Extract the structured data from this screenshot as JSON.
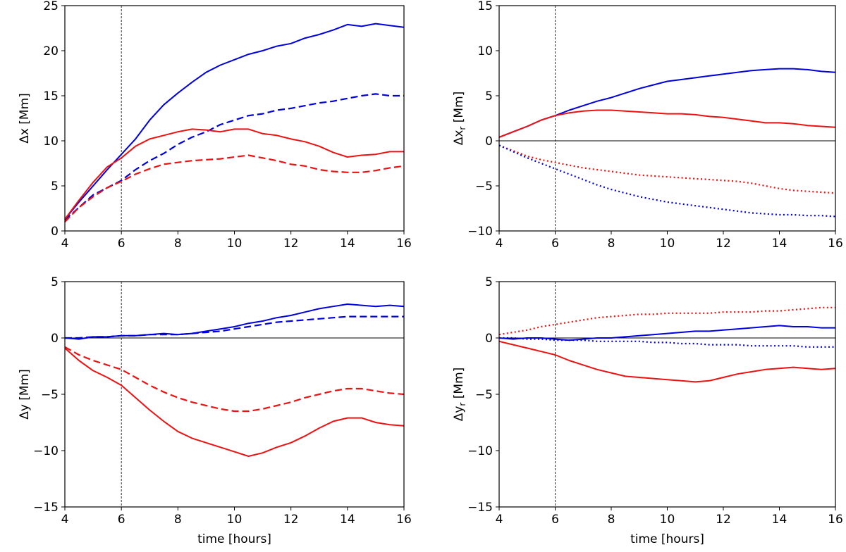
{
  "chart_data": [
    {
      "id": "top-left",
      "type": "line",
      "title": "",
      "xlabel": "",
      "ylabel": "Δx   [Mm]",
      "xlim": [
        4,
        16
      ],
      "ylim": [
        0,
        25
      ],
      "xticks": [
        4,
        6,
        8,
        10,
        12,
        14,
        16
      ],
      "yticks": [
        0,
        5,
        10,
        15,
        20,
        25
      ],
      "zero_line": false,
      "vline_x": 6,
      "series": [
        {
          "name": "blue-solid",
          "color": "#0000dd",
          "style": "solid",
          "x": [
            4,
            4.5,
            5,
            5.5,
            6,
            6.5,
            7,
            7.5,
            8,
            8.5,
            9,
            9.5,
            10,
            10.5,
            11,
            11.5,
            12,
            12.5,
            13,
            13.5,
            14,
            14.5,
            15,
            15.5,
            16
          ],
          "y": [
            1.3,
            3.2,
            5.0,
            6.8,
            8.5,
            10.2,
            12.3,
            14.0,
            15.3,
            16.5,
            17.6,
            18.4,
            19.0,
            19.6,
            20.0,
            20.5,
            20.8,
            21.4,
            21.8,
            22.3,
            22.9,
            22.7,
            23.0,
            22.8,
            22.6
          ]
        },
        {
          "name": "blue-dashed",
          "color": "#0000dd",
          "style": "dashed",
          "x": [
            4,
            4.5,
            5,
            5.5,
            6,
            6.5,
            7,
            7.5,
            8,
            8.5,
            9,
            9.5,
            10,
            10.5,
            11,
            11.5,
            12,
            12.5,
            13,
            13.5,
            14,
            14.5,
            15,
            15.5,
            16
          ],
          "y": [
            1.2,
            2.6,
            4.0,
            4.8,
            5.6,
            6.8,
            7.8,
            8.6,
            9.6,
            10.4,
            11.0,
            11.8,
            12.3,
            12.8,
            13.0,
            13.4,
            13.6,
            13.9,
            14.2,
            14.4,
            14.7,
            15.0,
            15.2,
            15.0,
            15.0
          ]
        },
        {
          "name": "red-solid",
          "color": "#ee1111",
          "style": "solid",
          "x": [
            4,
            4.5,
            5,
            5.5,
            6,
            6.5,
            7,
            7.5,
            8,
            8.5,
            9,
            9.5,
            10,
            10.5,
            11,
            11.5,
            12,
            12.5,
            13,
            13.5,
            14,
            14.5,
            15,
            15.5,
            16
          ],
          "y": [
            1.3,
            3.4,
            5.4,
            7.1,
            8.1,
            9.4,
            10.2,
            10.6,
            11.0,
            11.3,
            11.2,
            11.0,
            11.3,
            11.3,
            10.8,
            10.6,
            10.2,
            9.9,
            9.4,
            8.7,
            8.2,
            8.4,
            8.5,
            8.8,
            8.8
          ]
        },
        {
          "name": "red-dashed",
          "color": "#ee1111",
          "style": "dashed",
          "x": [
            4,
            4.5,
            5,
            5.5,
            6,
            6.5,
            7,
            7.5,
            8,
            8.5,
            9,
            9.5,
            10,
            10.5,
            11,
            11.5,
            12,
            12.5,
            13,
            13.5,
            14,
            14.5,
            15,
            15.5,
            16
          ],
          "y": [
            1.0,
            2.6,
            3.8,
            4.8,
            5.5,
            6.3,
            6.9,
            7.4,
            7.6,
            7.8,
            7.9,
            8.0,
            8.2,
            8.4,
            8.1,
            7.8,
            7.4,
            7.2,
            6.8,
            6.6,
            6.5,
            6.5,
            6.7,
            7.0,
            7.2
          ]
        }
      ]
    },
    {
      "id": "top-right",
      "type": "line",
      "title": "",
      "xlabel": "",
      "ylabel": "Δx",
      "ylabel_sub": "r",
      "ylabel_unit": " [Mm]",
      "xlim": [
        4,
        16
      ],
      "ylim": [
        -10,
        15
      ],
      "xticks": [
        4,
        6,
        8,
        10,
        12,
        14,
        16
      ],
      "yticks": [
        -10,
        -5,
        0,
        5,
        10,
        15
      ],
      "zero_line": true,
      "vline_x": 6,
      "series": [
        {
          "name": "blue-solid",
          "color": "#0000dd",
          "style": "solid",
          "x": [
            4,
            4.5,
            5,
            5.5,
            6,
            6.5,
            7,
            7.5,
            8,
            8.5,
            9,
            9.5,
            10,
            10.5,
            11,
            11.5,
            12,
            12.5,
            13,
            13.5,
            14,
            14.5,
            15,
            15.5,
            16
          ],
          "y": [
            0.4,
            1.0,
            1.6,
            2.3,
            2.8,
            3.4,
            3.9,
            4.4,
            4.8,
            5.3,
            5.8,
            6.2,
            6.6,
            6.8,
            7.0,
            7.2,
            7.4,
            7.6,
            7.8,
            7.9,
            8.0,
            8.0,
            7.9,
            7.7,
            7.6
          ]
        },
        {
          "name": "red-solid",
          "color": "#ee1111",
          "style": "solid",
          "x": [
            4,
            4.5,
            5,
            5.5,
            6,
            6.5,
            7,
            7.5,
            8,
            8.5,
            9,
            9.5,
            10,
            10.5,
            11,
            11.5,
            12,
            12.5,
            13,
            13.5,
            14,
            14.5,
            15,
            15.5,
            16
          ],
          "y": [
            0.4,
            1.0,
            1.6,
            2.3,
            2.8,
            3.1,
            3.3,
            3.4,
            3.4,
            3.3,
            3.2,
            3.1,
            3.0,
            3.0,
            2.9,
            2.7,
            2.6,
            2.4,
            2.2,
            2.0,
            2.0,
            1.9,
            1.7,
            1.6,
            1.5
          ]
        },
        {
          "name": "red-dotted",
          "color": "#ee1111",
          "style": "dotted",
          "x": [
            4,
            4.5,
            5,
            5.5,
            6,
            6.5,
            7,
            7.5,
            8,
            8.5,
            9,
            9.5,
            10,
            10.5,
            11,
            11.5,
            12,
            12.5,
            13,
            13.5,
            14,
            14.5,
            15,
            15.5,
            16
          ],
          "y": [
            -0.5,
            -1.1,
            -1.7,
            -2.1,
            -2.4,
            -2.7,
            -3.0,
            -3.2,
            -3.4,
            -3.6,
            -3.8,
            -3.9,
            -4.0,
            -4.1,
            -4.2,
            -4.3,
            -4.4,
            -4.5,
            -4.7,
            -5.0,
            -5.3,
            -5.5,
            -5.6,
            -5.7,
            -5.8
          ]
        },
        {
          "name": "blue-dotted",
          "color": "#0000dd",
          "style": "dotted",
          "x": [
            4,
            4.5,
            5,
            5.5,
            6,
            6.5,
            7,
            7.5,
            8,
            8.5,
            9,
            9.5,
            10,
            10.5,
            11,
            11.5,
            12,
            12.5,
            13,
            13.5,
            14,
            14.5,
            15,
            15.5,
            16
          ],
          "y": [
            -0.5,
            -1.2,
            -1.9,
            -2.5,
            -3.1,
            -3.7,
            -4.3,
            -4.9,
            -5.4,
            -5.8,
            -6.2,
            -6.5,
            -6.8,
            -7.0,
            -7.2,
            -7.4,
            -7.6,
            -7.8,
            -8.0,
            -8.1,
            -8.2,
            -8.2,
            -8.3,
            -8.3,
            -8.4
          ]
        }
      ]
    },
    {
      "id": "bottom-left",
      "type": "line",
      "title": "",
      "xlabel": "time [hours]",
      "ylabel": "Δy   [Mm]",
      "xlim": [
        4,
        16
      ],
      "ylim": [
        -15,
        5
      ],
      "xticks": [
        4,
        6,
        8,
        10,
        12,
        14,
        16
      ],
      "yticks": [
        -15,
        -10,
        -5,
        0,
        5
      ],
      "zero_line": true,
      "vline_x": 6,
      "series": [
        {
          "name": "blue-solid",
          "color": "#0000dd",
          "style": "solid",
          "x": [
            4,
            4.5,
            5,
            5.5,
            6,
            6.5,
            7,
            7.5,
            8,
            8.5,
            9,
            9.5,
            10,
            10.5,
            11,
            11.5,
            12,
            12.5,
            13,
            13.5,
            14,
            14.5,
            15,
            15.5,
            16
          ],
          "y": [
            0.0,
            -0.1,
            0.1,
            0.1,
            0.2,
            0.2,
            0.3,
            0.4,
            0.3,
            0.4,
            0.6,
            0.8,
            1.0,
            1.3,
            1.5,
            1.8,
            2.0,
            2.3,
            2.6,
            2.8,
            3.0,
            2.9,
            2.8,
            2.9,
            2.8
          ]
        },
        {
          "name": "blue-dashed",
          "color": "#0000dd",
          "style": "dashed",
          "x": [
            4,
            4.5,
            5,
            5.5,
            6,
            6.5,
            7,
            7.5,
            8,
            8.5,
            9,
            9.5,
            10,
            10.5,
            11,
            11.5,
            12,
            12.5,
            13,
            13.5,
            14,
            14.5,
            15,
            15.5,
            16
          ],
          "y": [
            0.0,
            0.0,
            0.1,
            0.1,
            0.2,
            0.2,
            0.3,
            0.3,
            0.3,
            0.4,
            0.5,
            0.6,
            0.8,
            1.0,
            1.2,
            1.4,
            1.5,
            1.6,
            1.7,
            1.8,
            1.9,
            1.9,
            1.9,
            1.9,
            1.9
          ]
        },
        {
          "name": "red-dashed",
          "color": "#ee1111",
          "style": "dashed",
          "x": [
            4,
            4.5,
            5,
            5.5,
            6,
            6.5,
            7,
            7.5,
            8,
            8.5,
            9,
            9.5,
            10,
            10.5,
            11,
            11.5,
            12,
            12.5,
            13,
            13.5,
            14,
            14.5,
            15,
            15.5,
            16
          ],
          "y": [
            -0.8,
            -1.5,
            -2.0,
            -2.4,
            -2.8,
            -3.5,
            -4.2,
            -4.8,
            -5.3,
            -5.7,
            -6.0,
            -6.3,
            -6.5,
            -6.5,
            -6.3,
            -6.0,
            -5.7,
            -5.3,
            -5.0,
            -4.7,
            -4.5,
            -4.5,
            -4.7,
            -4.9,
            -5.0
          ]
        },
        {
          "name": "red-solid",
          "color": "#ee1111",
          "style": "solid",
          "x": [
            4,
            4.5,
            5,
            5.5,
            6,
            6.5,
            7,
            7.5,
            8,
            8.5,
            9,
            9.5,
            10,
            10.5,
            11,
            11.5,
            12,
            12.5,
            13,
            13.5,
            14,
            14.5,
            15,
            15.5,
            16
          ],
          "y": [
            -0.9,
            -2.0,
            -2.9,
            -3.5,
            -4.2,
            -5.3,
            -6.4,
            -7.4,
            -8.3,
            -8.9,
            -9.3,
            -9.7,
            -10.1,
            -10.5,
            -10.2,
            -9.7,
            -9.3,
            -8.7,
            -8.0,
            -7.4,
            -7.1,
            -7.1,
            -7.5,
            -7.7,
            -7.8
          ]
        }
      ]
    },
    {
      "id": "bottom-right",
      "type": "line",
      "title": "",
      "xlabel": "time [hours]",
      "ylabel": "Δy",
      "ylabel_sub": "r",
      "ylabel_unit": " [Mm]",
      "xlim": [
        4,
        16
      ],
      "ylim": [
        -15,
        5
      ],
      "xticks": [
        4,
        6,
        8,
        10,
        12,
        14,
        16
      ],
      "yticks": [
        -15,
        -10,
        -5,
        0,
        5
      ],
      "zero_line": true,
      "vline_x": 6,
      "series": [
        {
          "name": "red-dotted",
          "color": "#ee1111",
          "style": "dotted",
          "x": [
            4,
            4.5,
            5,
            5.5,
            6,
            6.5,
            7,
            7.5,
            8,
            8.5,
            9,
            9.5,
            10,
            10.5,
            11,
            11.5,
            12,
            12.5,
            13,
            13.5,
            14,
            14.5,
            15,
            15.5,
            16
          ],
          "y": [
            0.3,
            0.5,
            0.7,
            1.0,
            1.2,
            1.4,
            1.6,
            1.8,
            1.9,
            2.0,
            2.1,
            2.1,
            2.2,
            2.2,
            2.2,
            2.2,
            2.3,
            2.3,
            2.3,
            2.4,
            2.4,
            2.5,
            2.6,
            2.7,
            2.7
          ]
        },
        {
          "name": "blue-solid",
          "color": "#0000dd",
          "style": "solid",
          "x": [
            4,
            4.5,
            5,
            5.5,
            6,
            6.5,
            7,
            7.5,
            8,
            8.5,
            9,
            9.5,
            10,
            10.5,
            11,
            11.5,
            12,
            12.5,
            13,
            13.5,
            14,
            14.5,
            15,
            15.5,
            16
          ],
          "y": [
            0.0,
            -0.1,
            0.0,
            0.0,
            -0.1,
            -0.2,
            -0.1,
            0.0,
            0.0,
            0.1,
            0.2,
            0.3,
            0.4,
            0.5,
            0.6,
            0.6,
            0.7,
            0.8,
            0.9,
            1.0,
            1.1,
            1.0,
            1.0,
            0.9,
            0.9
          ]
        },
        {
          "name": "blue-dotted",
          "color": "#0000dd",
          "style": "dotted",
          "x": [
            4,
            4.5,
            5,
            5.5,
            6,
            6.5,
            7,
            7.5,
            8,
            8.5,
            9,
            9.5,
            10,
            10.5,
            11,
            11.5,
            12,
            12.5,
            13,
            13.5,
            14,
            14.5,
            15,
            15.5,
            16
          ],
          "y": [
            0.0,
            0.0,
            -0.1,
            -0.1,
            -0.2,
            -0.2,
            -0.2,
            -0.3,
            -0.3,
            -0.3,
            -0.3,
            -0.4,
            -0.4,
            -0.5,
            -0.5,
            -0.6,
            -0.6,
            -0.6,
            -0.7,
            -0.7,
            -0.7,
            -0.7,
            -0.8,
            -0.8,
            -0.8
          ]
        },
        {
          "name": "red-solid",
          "color": "#ee1111",
          "style": "solid",
          "x": [
            4,
            4.5,
            5,
            5.5,
            6,
            6.5,
            7,
            7.5,
            8,
            8.5,
            9,
            9.5,
            10,
            10.5,
            11,
            11.5,
            12,
            12.5,
            13,
            13.5,
            14,
            14.5,
            15,
            15.5,
            16
          ],
          "y": [
            -0.3,
            -0.6,
            -0.9,
            -1.2,
            -1.5,
            -2.0,
            -2.4,
            -2.8,
            -3.1,
            -3.4,
            -3.5,
            -3.6,
            -3.7,
            -3.8,
            -3.9,
            -3.8,
            -3.5,
            -3.2,
            -3.0,
            -2.8,
            -2.7,
            -2.6,
            -2.7,
            -2.8,
            -2.7
          ]
        }
      ]
    }
  ]
}
